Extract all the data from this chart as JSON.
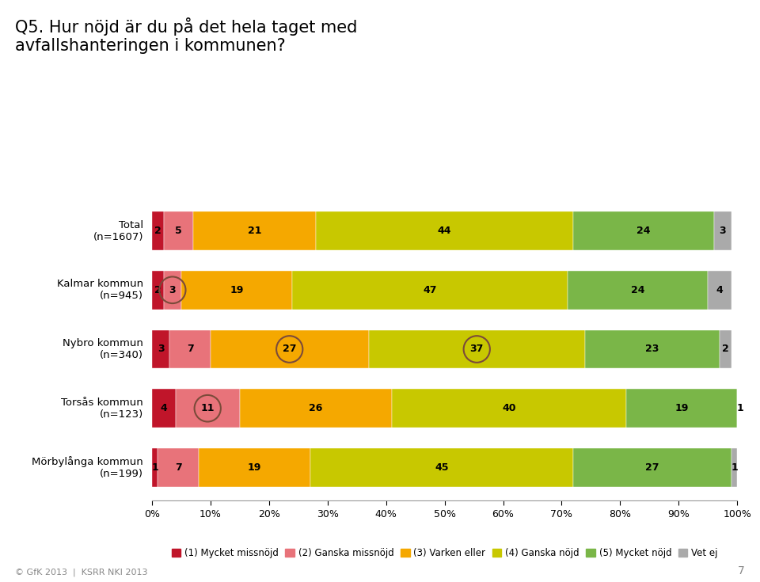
{
  "title": "Q5. Hur nöjd är du på det hela taget med\navfallshanteringen i kommunen?",
  "categories": [
    "Total\n(n=1607)",
    "Kalmar kommun\n(n=945)",
    "Nybro kommun\n(n=340)",
    "Torsås kommun\n(n=123)",
    "Mörbylånga kommun\n(n=199)"
  ],
  "series": [
    {
      "label": "(1) Mycket missnöjd",
      "color": "#C0152A",
      "values": [
        2,
        2,
        3,
        4,
        1
      ]
    },
    {
      "label": "(2) Ganska missnöjd",
      "color": "#E8737A",
      "values": [
        5,
        3,
        7,
        11,
        7
      ]
    },
    {
      "label": "(3) Varken eller",
      "color": "#F5A800",
      "values": [
        21,
        19,
        27,
        26,
        19
      ]
    },
    {
      "label": "(4) Ganska nöjd",
      "color": "#C8C800",
      "values": [
        44,
        47,
        37,
        40,
        45
      ]
    },
    {
      "label": "(5) Mycket nöjd",
      "color": "#7AB648",
      "values": [
        24,
        24,
        23,
        19,
        27
      ]
    },
    {
      "label": "Vet ej",
      "color": "#AAAAAA",
      "values": [
        3,
        4,
        2,
        1,
        1
      ]
    }
  ],
  "footer": "© GfK 2013  |  KSRR NKI 2013",
  "page_number": "7",
  "background_color": "#FFFFFF",
  "bar_height": 0.65,
  "xlim": [
    0,
    100
  ],
  "circled_segments": [
    {
      "row": 1,
      "seg": 1
    },
    {
      "row": 2,
      "seg": 2
    },
    {
      "row": 2,
      "seg": 3
    },
    {
      "row": 3,
      "seg": 1
    }
  ]
}
